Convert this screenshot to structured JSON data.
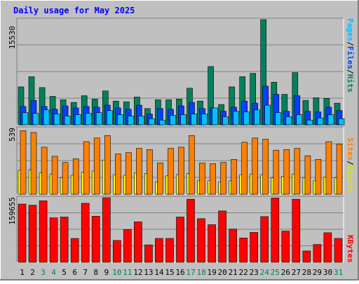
{
  "chart_data": [
    {
      "type": "bar",
      "title": "Daily usage for May 2025",
      "ymax_label": "15530",
      "axis_labels": [
        "Pages",
        "Files",
        "Hits"
      ],
      "categories": [
        "1",
        "2",
        "3",
        "4",
        "5",
        "6",
        "7",
        "8",
        "9",
        "10",
        "11",
        "12",
        "13",
        "14",
        "15",
        "16",
        "17",
        "18",
        "19",
        "20",
        "21",
        "22",
        "23",
        "24",
        "25",
        "26",
        "27",
        "28",
        "29",
        "30",
        "31"
      ],
      "weekend_days": [
        "3",
        "4",
        "10",
        "11",
        "17",
        "18",
        "24",
        "25",
        "31"
      ],
      "colors": {
        "hits": "#00805c",
        "files": "#0040ff",
        "pages": "#00c0ff"
      },
      "series": [
        {
          "name": "Hits",
          "values": [
            5600,
            7100,
            5500,
            4200,
            3700,
            3300,
            4300,
            3800,
            5000,
            3500,
            3400,
            4100,
            2400,
            3700,
            3700,
            3800,
            5400,
            3500,
            8600,
            3000,
            5600,
            7100,
            7600,
            15530,
            6300,
            4500,
            7700,
            3600,
            4000,
            3900,
            3200
          ]
        },
        {
          "name": "Files",
          "values": [
            2700,
            3600,
            2700,
            2300,
            2800,
            2500,
            2700,
            2600,
            2900,
            2500,
            2300,
            2900,
            1600,
            2400,
            2300,
            2800,
            3300,
            2400,
            2500,
            2000,
            2600,
            3500,
            3200,
            5700,
            4500,
            2000,
            4300,
            2000,
            1900,
            2600,
            2100
          ]
        },
        {
          "name": "Pages",
          "values": [
            1800,
            1700,
            2200,
            1600,
            1300,
            1500,
            1700,
            1800,
            2100,
            1500,
            1300,
            1300,
            900,
            700,
            1400,
            1500,
            1600,
            1600,
            2500,
            1200,
            2000,
            1900,
            2200,
            2900,
            1800,
            1200,
            1500,
            700,
            1000,
            1500,
            900
          ]
        }
      ],
      "ylim": [
        0,
        15530
      ]
    },
    {
      "type": "bar",
      "ymax_label": "539",
      "axis_labels": [
        "Sites",
        "Visits"
      ],
      "colors": {
        "visits": "#ff8000",
        "sites": "#ffff00"
      },
      "series": [
        {
          "name": "Visits",
          "values": [
            520,
            505,
            385,
            310,
            260,
            290,
            430,
            460,
            480,
            330,
            340,
            375,
            365,
            255,
            375,
            385,
            480,
            255,
            250,
            260,
            285,
            425,
            460,
            450,
            360,
            365,
            375,
            315,
            285,
            430,
            410
          ]
        },
        {
          "name": "Sites",
          "values": [
            195,
            200,
            175,
            165,
            135,
            155,
            180,
            190,
            280,
            160,
            155,
            175,
            170,
            100,
            150,
            160,
            170,
            110,
            110,
            100,
            110,
            160,
            165,
            160,
            135,
            145,
            165,
            135,
            110,
            140,
            135
          ]
        }
      ],
      "ylim": [
        0,
        539
      ]
    },
    {
      "type": "bar",
      "ymax_label": "159655",
      "axis_labels": [
        "KBytes"
      ],
      "colors": {
        "kbytes": "#ff0000"
      },
      "series": [
        {
          "name": "KBytes",
          "values": [
            144000,
            141000,
            152000,
            110000,
            112000,
            59000,
            146000,
            114000,
            159655,
            54000,
            81000,
            100000,
            43000,
            59000,
            59000,
            112000,
            156000,
            108000,
            93000,
            127000,
            82000,
            60000,
            74000,
            113000,
            159000,
            77000,
            156000,
            28000,
            44000,
            73000,
            59000
          ]
        }
      ],
      "ylim": [
        0,
        159655
      ]
    }
  ]
}
